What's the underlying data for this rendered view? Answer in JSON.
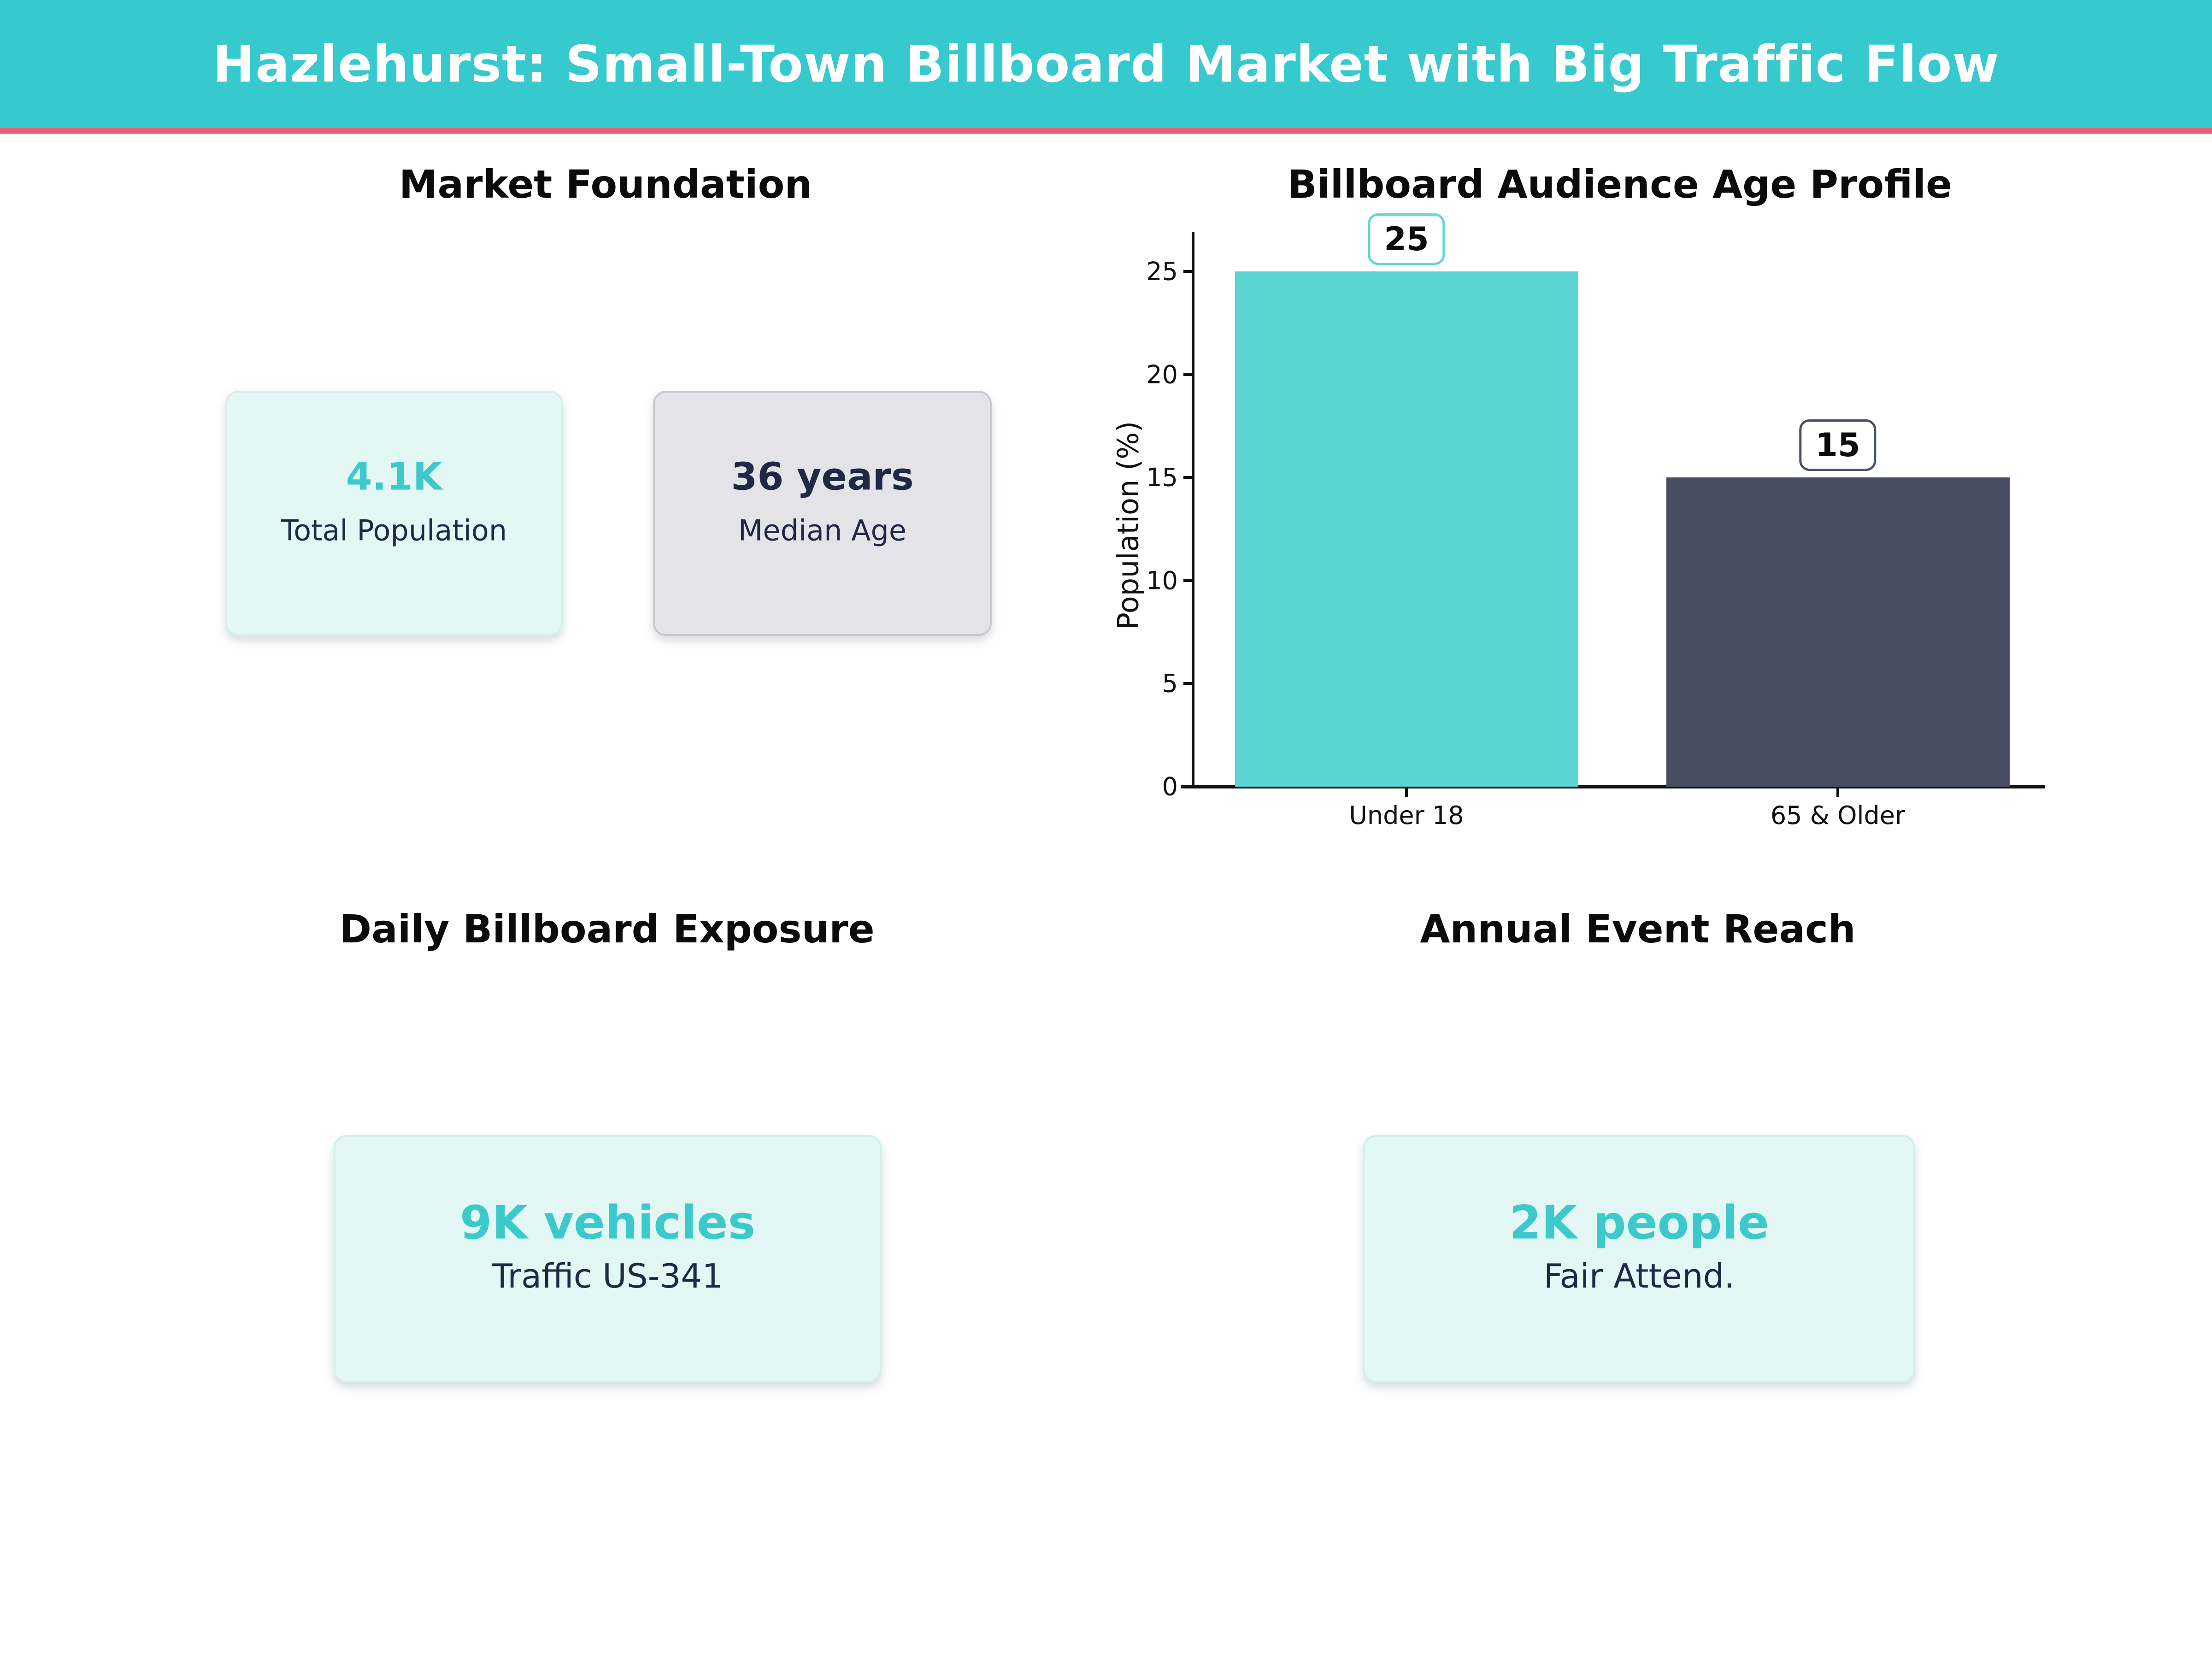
{
  "header": {
    "title": "Hazlehurst: Small-Town Billboard Market with Big Traffic Flow",
    "bg_color": "#36C9CE",
    "underline_color": "#EE5D73",
    "text_color": "#FFFFFF"
  },
  "quadrants": {
    "market_foundation": {
      "heading": "Market Foundation",
      "cards": [
        {
          "value": "4.1K",
          "label": "Total Population",
          "value_color": "#3CC9CB",
          "label_color": "#1F2845",
          "bg_color": "#E3F7F4",
          "border_color": "#D3F0EA"
        },
        {
          "value": "36 years",
          "label": "Median Age",
          "value_color": "#1F2845",
          "label_color": "#1F2845",
          "bg_color": "#E3E3E8",
          "border_color": "#C8C8CF"
        }
      ]
    },
    "age_profile": {
      "heading": "Billboard Audience Age Profile"
    },
    "exposure": {
      "heading": "Daily Billboard Exposure",
      "card": {
        "value": "9K vehicles",
        "label": "Traffic US-341",
        "value_color": "#3CC9CB",
        "label_color": "#1F2845",
        "bg_color": "#E3F7F4",
        "border_color": "#D3F0EA"
      }
    },
    "event_reach": {
      "heading": "Annual Event Reach",
      "card": {
        "value": "2K people",
        "label": "Fair Attend.",
        "value_color": "#3CC9CB",
        "label_color": "#1F2845",
        "bg_color": "#E3F7F4",
        "border_color": "#D3F0EA"
      }
    }
  },
  "chart_data": {
    "type": "bar",
    "title": "Billboard Audience Age Profile",
    "categories": [
      "Under 18",
      "65 & Older"
    ],
    "values": [
      25,
      15
    ],
    "value_labels": [
      "25",
      "15"
    ],
    "bar_colors": [
      "#5BD5D3",
      "#474D63"
    ],
    "badge_border_colors": [
      "#63D6D2",
      "#4A5168"
    ],
    "xlabel": "",
    "ylabel": "Population (%)",
    "ylim": [
      0,
      27
    ],
    "yticks": [
      0,
      5,
      10,
      15,
      20,
      25
    ],
    "grid": false,
    "legend": "none",
    "axis_color": "#111111"
  }
}
